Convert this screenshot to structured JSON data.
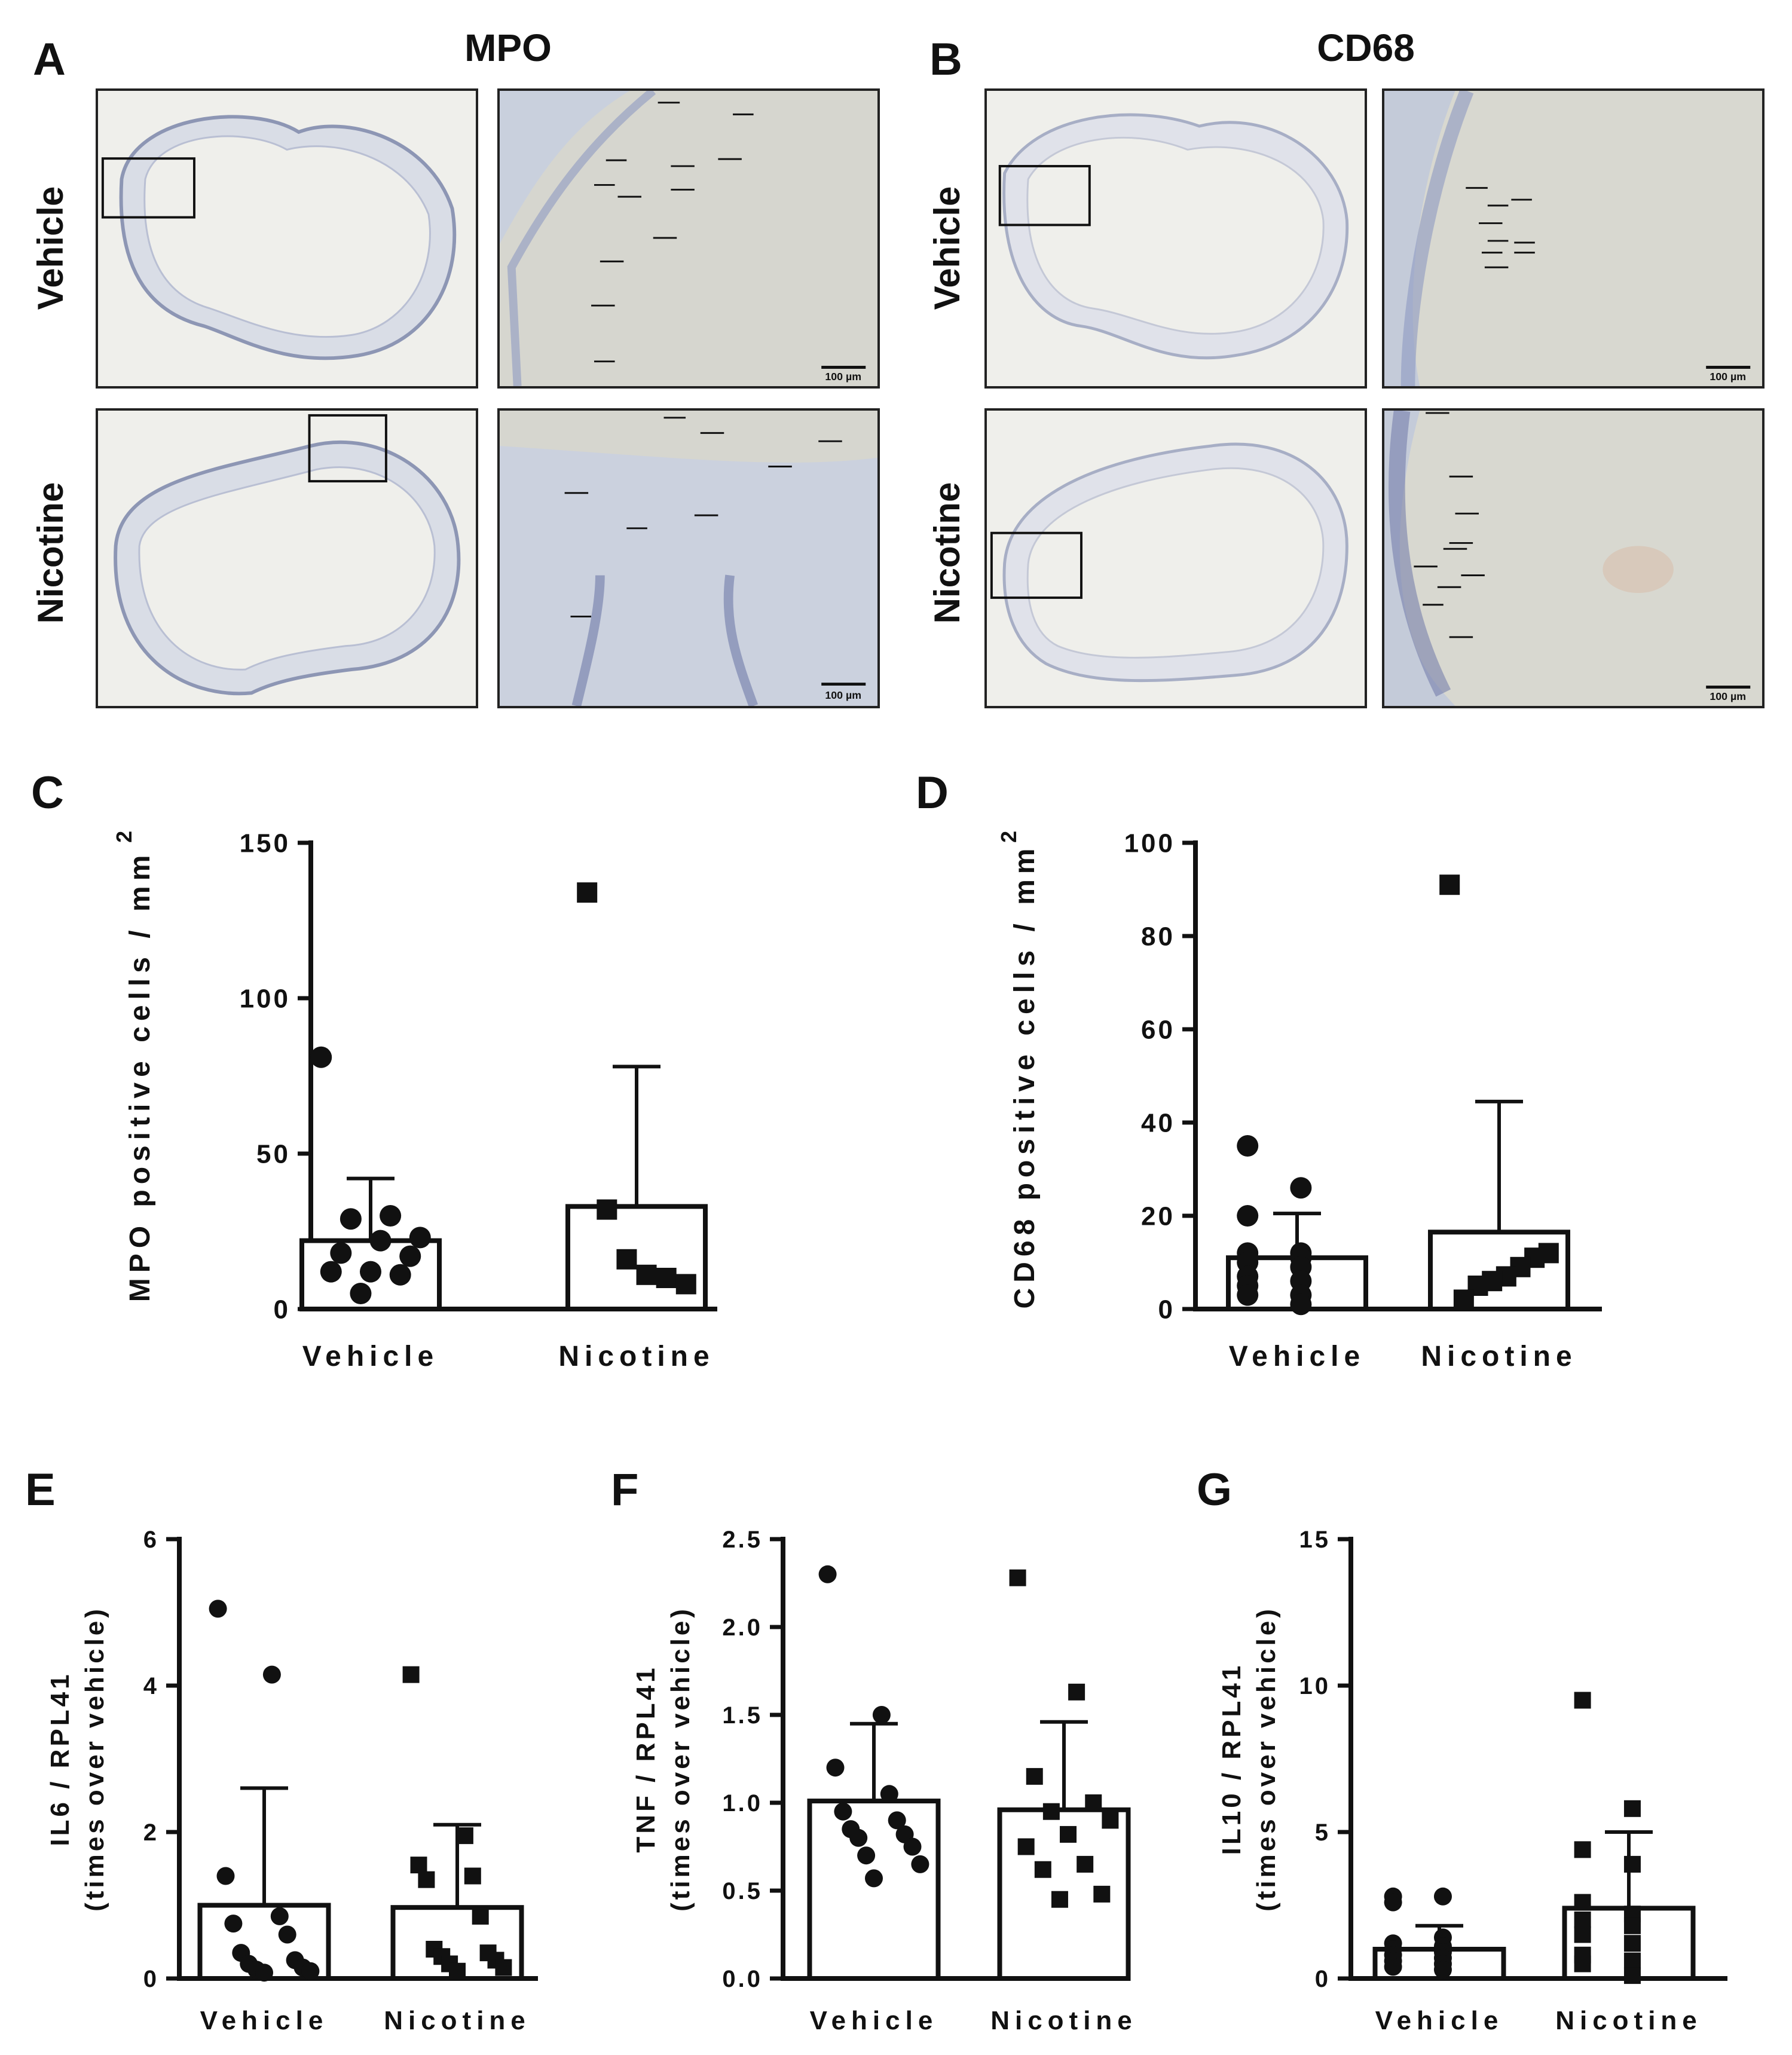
{
  "panels": {
    "A": {
      "letter": "A",
      "title": "MPO"
    },
    "B": {
      "letter": "B",
      "title": "CD68"
    }
  },
  "row_labels": {
    "vehicle": "Vehicle",
    "nicotine": "Nicotine"
  },
  "scale_bar_label": "100 µm",
  "chart_data": [
    {
      "id": "C",
      "letter": "C",
      "type": "bar",
      "categories": [
        "Vehicle",
        "Nicotine"
      ],
      "ylabel": "MPO positive cells / mm",
      "ylabel_sup": "2",
      "ylim": [
        0,
        150
      ],
      "yticks": [
        0,
        50,
        100,
        150
      ],
      "ytick_labels": [
        "0",
        "50",
        "100",
        "150"
      ],
      "series": [
        {
          "name": "Vehicle",
          "marker": "circle",
          "mean": 22,
          "err_upper": 42,
          "points": [
            81,
            30,
            29,
            23,
            22,
            18,
            17,
            12,
            12,
            11,
            5
          ]
        },
        {
          "name": "Nicotine",
          "marker": "square",
          "mean": 33,
          "err_upper": 78,
          "points": [
            134,
            32,
            16,
            11,
            10,
            8
          ]
        }
      ]
    },
    {
      "id": "D",
      "letter": "D",
      "type": "bar",
      "categories": [
        "Vehicle",
        "Nicotine"
      ],
      "ylabel": "CD68 positive cells / mm",
      "ylabel_sup": "2",
      "ylim": [
        0,
        100
      ],
      "yticks": [
        0,
        20,
        40,
        60,
        80,
        100
      ],
      "ytick_labels": [
        "0",
        "20",
        "40",
        "60",
        "80",
        "100"
      ],
      "series": [
        {
          "name": "Vehicle",
          "marker": "circle",
          "mean": 11,
          "err_upper": 20.5,
          "points": [
            35,
            26,
            20,
            12,
            12,
            11,
            10,
            9,
            7,
            6,
            5,
            3,
            3,
            1
          ]
        },
        {
          "name": "Nicotine",
          "marker": "square",
          "mean": 16.5,
          "err_upper": 44.5,
          "points": [
            91,
            12,
            11,
            9,
            7,
            6,
            5,
            2
          ]
        }
      ]
    },
    {
      "id": "E",
      "letter": "E",
      "type": "bar",
      "categories": [
        "Vehicle",
        "Nicotine"
      ],
      "ylabel": "IL6 / RPL41",
      "ylabel2": "(times over vehicle)",
      "ylim": [
        0,
        6
      ],
      "yticks": [
        0,
        2,
        4,
        6
      ],
      "ytick_labels": [
        "0",
        "2",
        "4",
        "6"
      ],
      "series": [
        {
          "name": "Vehicle",
          "marker": "circle",
          "mean": 1.0,
          "err_upper": 2.6,
          "points": [
            5.05,
            4.15,
            1.4,
            0.85,
            0.75,
            0.6,
            0.35,
            0.25,
            0.2,
            0.15,
            0.12,
            0.1,
            0.08
          ]
        },
        {
          "name": "Nicotine",
          "marker": "square",
          "mean": 0.97,
          "err_upper": 2.1,
          "points": [
            4.15,
            1.95,
            1.55,
            1.4,
            1.35,
            0.85,
            0.4,
            0.35,
            0.3,
            0.25,
            0.2,
            0.15,
            0.1
          ]
        }
      ]
    },
    {
      "id": "F",
      "letter": "F",
      "type": "bar",
      "categories": [
        "Vehicle",
        "Nicotine"
      ],
      "ylabel": "TNF / RPL41",
      "ylabel2": "(times over vehicle)",
      "ylim": [
        0,
        2.5
      ],
      "yticks": [
        0,
        0.5,
        1.0,
        1.5,
        2.0,
        2.5
      ],
      "ytick_labels": [
        "0.0",
        "0.5",
        "1.0",
        "1.5",
        "2.0",
        "2.5"
      ],
      "series": [
        {
          "name": "Vehicle",
          "marker": "circle",
          "mean": 1.01,
          "err_upper": 1.45,
          "points": [
            2.3,
            1.5,
            1.2,
            1.05,
            0.95,
            0.9,
            0.85,
            0.82,
            0.8,
            0.75,
            0.7,
            0.65,
            0.57
          ]
        },
        {
          "name": "Nicotine",
          "marker": "square",
          "mean": 0.96,
          "err_upper": 1.46,
          "points": [
            2.28,
            1.63,
            1.15,
            1.0,
            0.95,
            0.9,
            0.82,
            0.75,
            0.65,
            0.62,
            0.48,
            0.45
          ]
        }
      ]
    },
    {
      "id": "G",
      "letter": "G",
      "type": "bar",
      "categories": [
        "Vehicle",
        "Nicotine"
      ],
      "ylabel": "IL10 / RPL41",
      "ylabel2": "(times over vehicle)",
      "ylim": [
        0,
        15
      ],
      "yticks": [
        0,
        5,
        10,
        15
      ],
      "ytick_labels": [
        "0",
        "5",
        "10",
        "15"
      ],
      "series": [
        {
          "name": "Vehicle",
          "marker": "circle",
          "mean": 1.0,
          "err_upper": 1.8,
          "points": [
            2.8,
            2.8,
            2.6,
            1.4,
            1.2,
            1.1,
            1.0,
            0.9,
            0.8,
            0.7,
            0.6,
            0.5,
            0.4,
            0.3
          ]
        },
        {
          "name": "Nicotine",
          "marker": "square",
          "mean": 2.4,
          "err_upper": 5.0,
          "points": [
            9.5,
            5.8,
            4.4,
            3.9,
            2.6,
            2.2,
            2.0,
            1.8,
            1.5,
            1.2,
            0.8,
            0.6,
            0.5,
            0.1
          ]
        }
      ]
    }
  ]
}
